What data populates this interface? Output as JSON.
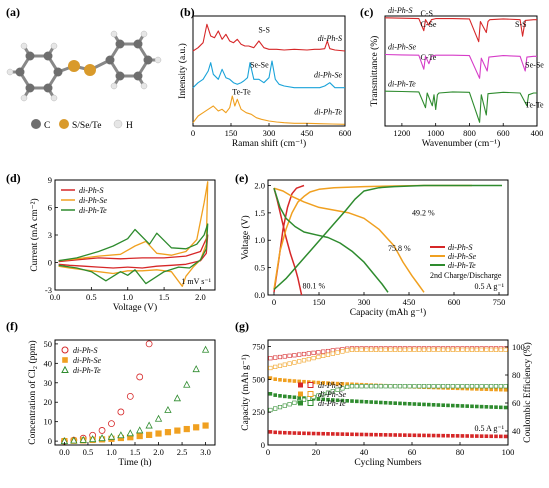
{
  "chart_data": [
    {
      "panel": "(a)",
      "type": "molecule",
      "legend": [
        "C",
        "S/Se/Te",
        "H"
      ],
      "colors": {
        "C": "#6e6e6e",
        "X": "#d99a2b",
        "H": "#e6e6e6"
      }
    },
    {
      "panel": "(b)",
      "type": "line",
      "xlabel": "Raman shift (cm⁻¹)",
      "ylabel": "Intensity (a.u.)",
      "xlim": [
        0,
        600
      ],
      "xticks": [
        "0",
        "150",
        "300",
        "450",
        "600"
      ],
      "series": [
        {
          "name": "di-Ph-S",
          "color": "#d62728",
          "offset": 2.2,
          "x": [
            0,
            20,
            40,
            55,
            70,
            85,
            100,
            115,
            130,
            145,
            160,
            175,
            190,
            205,
            220,
            240,
            260,
            280,
            300,
            330,
            360,
            400,
            450,
            480,
            500,
            520,
            530,
            540,
            560,
            600
          ],
          "values": [
            0.05,
            0.15,
            0.3,
            0.85,
            0.5,
            0.45,
            0.65,
            0.4,
            0.55,
            0.35,
            0.3,
            0.4,
            0.25,
            0.2,
            0.2,
            0.15,
            0.35,
            0.15,
            0.1,
            0.1,
            0.08,
            0.1,
            0.08,
            0.1,
            0.1,
            0.12,
            0.35,
            0.12,
            0.08,
            0.05
          ]
        },
        {
          "name": "di-Ph-Se",
          "color": "#1aa3d9",
          "offset": 1.1,
          "x": [
            0,
            20,
            40,
            60,
            70,
            80,
            100,
            115,
            130,
            145,
            160,
            175,
            190,
            200,
            215,
            225,
            240,
            260,
            280,
            300,
            312,
            325,
            340,
            360,
            400,
            450,
            500,
            520,
            540,
            560,
            600
          ],
          "values": [
            0.05,
            0.2,
            0.3,
            0.55,
            0.8,
            0.45,
            0.3,
            0.6,
            0.35,
            0.3,
            0.2,
            0.15,
            0.2,
            0.25,
            0.35,
            0.8,
            0.3,
            0.3,
            0.2,
            0.35,
            0.85,
            0.3,
            0.15,
            0.1,
            0.05,
            0.05,
            0.05,
            0.1,
            0.2,
            0.05,
            0.05
          ]
        },
        {
          "name": "di-Ph-Te",
          "color": "#f0a020",
          "offset": 0.0,
          "x": [
            0,
            20,
            40,
            60,
            80,
            100,
            115,
            130,
            145,
            155,
            165,
            175,
            190,
            210,
            230,
            250,
            270,
            300,
            330,
            360,
            400,
            450,
            500,
            550,
            600
          ],
          "values": [
            0.1,
            0.3,
            0.4,
            0.5,
            0.6,
            0.45,
            0.5,
            0.4,
            0.55,
            0.9,
            0.6,
            0.8,
            0.5,
            0.4,
            0.35,
            0.25,
            0.2,
            0.15,
            0.12,
            0.1,
            0.08,
            0.08,
            0.07,
            0.06,
            0.05
          ]
        }
      ],
      "annotations": [
        "S-S",
        "Se-Se",
        "Te-Te"
      ]
    },
    {
      "panel": "(c)",
      "type": "line",
      "xlabel": "Wavenumber (cm⁻¹)",
      "ylabel": "Transmittance (%)",
      "xlim": [
        1300,
        400
      ],
      "xticks": [
        "1200",
        "1000",
        "800",
        "600",
        "400"
      ],
      "series": [
        {
          "name": "di-Ph-S",
          "color": "#d62728",
          "offset": 2.0,
          "x": [
            1300,
            1200,
            1100,
            1070,
            1060,
            1040,
            1025,
            1000,
            900,
            800,
            745,
            735,
            700,
            690,
            680,
            600,
            500,
            485,
            470,
            420,
            400
          ],
          "values": [
            0.95,
            0.94,
            0.93,
            0.6,
            0.9,
            0.75,
            0.9,
            0.93,
            0.93,
            0.92,
            0.3,
            0.85,
            0.55,
            0.85,
            0.9,
            0.92,
            0.9,
            0.45,
            0.88,
            0.9,
            0.9
          ]
        },
        {
          "name": "di-Ph-Se",
          "color": "#d63cc8",
          "offset": 1.0,
          "x": [
            1300,
            1200,
            1100,
            1070,
            1060,
            1040,
            1025,
            1000,
            900,
            800,
            740,
            730,
            695,
            685,
            600,
            500,
            470,
            460,
            420,
            400
          ],
          "values": [
            0.95,
            0.94,
            0.93,
            0.55,
            0.9,
            0.7,
            0.9,
            0.93,
            0.93,
            0.92,
            0.3,
            0.85,
            0.5,
            0.88,
            0.92,
            0.9,
            0.5,
            0.88,
            0.9,
            0.9
          ]
        },
        {
          "name": "di-Ph-Te",
          "color": "#2e8b2e",
          "offset": 0.0,
          "x": [
            1300,
            1200,
            1100,
            1060,
            1050,
            1020,
            1010,
            1000,
            990,
            980,
            900,
            800,
            740,
            730,
            700,
            690,
            600,
            500,
            460,
            450,
            420,
            400
          ],
          "values": [
            0.95,
            0.94,
            0.93,
            0.5,
            0.9,
            0.55,
            0.85,
            0.45,
            0.85,
            0.9,
            0.93,
            0.92,
            0.1,
            0.85,
            0.3,
            0.88,
            0.92,
            0.9,
            0.55,
            0.85,
            0.9,
            0.9
          ]
        }
      ],
      "annotations": [
        "C-S",
        "C-Se",
        "C-Te",
        "S-S",
        "Se-Se",
        "Te-Te"
      ]
    },
    {
      "panel": "(d)",
      "type": "line",
      "xlabel": "Voltage (V)",
      "ylabel": "Current (mA cm⁻²)",
      "xlim": [
        0,
        2.2
      ],
      "ylim": [
        -3,
        9
      ],
      "xticks": [
        "0.0",
        "0.5",
        "1.0",
        "1.5",
        "2.0"
      ],
      "yticks": [
        "-3",
        "0",
        "3",
        "6",
        "9"
      ],
      "annotation": "1 mV s⁻¹",
      "series": [
        {
          "name": "di-Ph-S",
          "color": "#d62728",
          "x": [
            0.05,
            0.3,
            0.6,
            0.9,
            1.2,
            1.5,
            1.8,
            2.0,
            2.08,
            2.1,
            2.08,
            2.0,
            1.8,
            1.6,
            1.4,
            1.2,
            1.0,
            0.8,
            0.6,
            0.4,
            0.2,
            0.05
          ],
          "values": [
            0.1,
            0.3,
            0.5,
            0.4,
            0.5,
            0.5,
            0.7,
            1.2,
            2.6,
            3.0,
            1.0,
            0.2,
            -0.2,
            -0.3,
            -0.4,
            -0.6,
            -0.5,
            -0.6,
            -0.5,
            -0.4,
            -0.3,
            -0.2
          ]
        },
        {
          "name": "di-Ph-Se",
          "color": "#f0a020",
          "x": [
            0.05,
            0.3,
            0.6,
            0.9,
            1.1,
            1.25,
            1.4,
            1.6,
            1.8,
            1.95,
            2.05,
            2.1,
            2.08,
            2.0,
            1.9,
            1.8,
            1.75,
            1.6,
            1.4,
            1.2,
            1.0,
            0.8,
            0.6,
            0.4,
            0.2,
            0.05
          ],
          "values": [
            0.2,
            0.4,
            0.7,
            0.9,
            1.8,
            2.3,
            1.0,
            0.8,
            1.2,
            2.5,
            6.5,
            8.8,
            2.0,
            0.3,
            -0.5,
            -1.5,
            -2.6,
            -1.0,
            -0.8,
            -0.9,
            -0.9,
            -1.2,
            -1.0,
            -0.8,
            -0.6,
            -0.4
          ]
        },
        {
          "name": "di-Ph-Te",
          "color": "#2e8b2e",
          "x": [
            0.05,
            0.3,
            0.6,
            0.8,
            1.0,
            1.1,
            1.3,
            1.4,
            1.6,
            1.8,
            1.95,
            2.05,
            2.1,
            2.08,
            2.0,
            1.85,
            1.7,
            1.5,
            1.25,
            1.1,
            1.0,
            0.9,
            0.7,
            0.5,
            0.3,
            0.05
          ],
          "values": [
            0.2,
            0.5,
            1.2,
            1.8,
            2.6,
            3.6,
            2.0,
            3.2,
            1.6,
            1.5,
            2.0,
            3.0,
            4.2,
            1.5,
            0.3,
            -0.6,
            -0.5,
            -1.0,
            -2.3,
            -0.8,
            -1.4,
            -1.0,
            -2.0,
            -1.0,
            -0.6,
            -0.3
          ]
        }
      ]
    },
    {
      "panel": "(e)",
      "type": "line",
      "xlabel": "Capacity (mAh g⁻¹)",
      "ylabel": "Voltage (V)",
      "xlim": [
        -20,
        780
      ],
      "ylim": [
        0,
        2.1
      ],
      "xticks": [
        "0",
        "150",
        "300",
        "450",
        "600",
        "750"
      ],
      "yticks": [
        "0.0",
        "0.5",
        "1.0",
        "1.5",
        "2.0"
      ],
      "legend_note": "2nd Charge/Discharge",
      "current": "0.5 A g⁻¹",
      "efficiencies": [
        "49.2 %",
        "75.8 %",
        "80.1 %"
      ],
      "series": [
        {
          "name": "di-Ph-S",
          "color": "#d62728",
          "discharge": {
            "x": [
              0,
              10,
              25,
              40,
              55,
              70,
              80,
              88,
              92
            ],
            "values": [
              1.95,
              1.75,
              1.4,
              1.05,
              0.75,
              0.5,
              0.3,
              0.1,
              0.0
            ]
          },
          "charge": {
            "x": [
              0,
              15,
              30,
              45,
              60,
              75,
              90,
              100
            ],
            "values": [
              0.05,
              0.6,
              1.2,
              1.6,
              1.85,
              1.95,
              1.98,
              2.0
            ]
          }
        },
        {
          "name": "di-Ph-Se",
          "color": "#f0a020",
          "discharge": {
            "x": [
              0,
              30,
              60,
              100,
              150,
              200,
              250,
              300,
              350,
              400,
              430,
              460,
              480,
              500
            ],
            "values": [
              1.95,
              1.9,
              1.8,
              1.7,
              1.6,
              1.55,
              1.5,
              1.4,
              1.2,
              0.9,
              0.6,
              0.35,
              0.2,
              0.05
            ]
          },
          "charge": {
            "x": [
              0,
              20,
              40,
              60,
              80,
              100,
              120,
              150,
              200,
              300,
              400,
              500,
              600,
              650,
              660
            ],
            "values": [
              0.1,
              0.8,
              1.2,
              1.5,
              1.7,
              1.8,
              1.88,
              1.93,
              1.96,
              1.98,
              1.99,
              2.0,
              2.0,
              2.0,
              2.0
            ]
          }
        },
        {
          "name": "di-Ph-Te",
          "color": "#2e8b2e",
          "discharge": {
            "x": [
              0,
              20,
              40,
              70,
              100,
              140,
              180,
              220,
              260,
              300,
              330,
              360,
              380
            ],
            "values": [
              1.95,
              1.6,
              1.4,
              1.25,
              1.15,
              1.1,
              1.05,
              0.95,
              0.8,
              0.6,
              0.4,
              0.2,
              0.05
            ]
          },
          "charge": {
            "x": [
              0,
              40,
              80,
              120,
              160,
              200,
              240,
              270,
              300,
              350,
              400,
              500,
              600,
              700,
              760
            ],
            "values": [
              0.1,
              0.3,
              0.55,
              0.8,
              1.05,
              1.3,
              1.55,
              1.75,
              1.9,
              1.96,
              1.98,
              2.0,
              2.0,
              2.0,
              2.0
            ]
          }
        }
      ]
    },
    {
      "panel": "(f)",
      "type": "scatter",
      "xlabel": "Time (h)",
      "ylabel": "Concentration of Cl₂ (ppm)",
      "xlim": [
        -0.2,
        3.2
      ],
      "ylim": [
        -2,
        52
      ],
      "xticks": [
        "0.0",
        "0.5",
        "1.0",
        "1.5",
        "2.0",
        "2.5",
        "3.0"
      ],
      "yticks": [
        "0",
        "10",
        "20",
        "30",
        "40",
        "50"
      ],
      "series": [
        {
          "name": "di-Ph-S",
          "color": "#d62728",
          "marker": "half-circle",
          "x": [
            0,
            0.2,
            0.4,
            0.6,
            0.8,
            1.0,
            1.2,
            1.4,
            1.6,
            1.8
          ],
          "values": [
            0,
            0.5,
            1.5,
            3,
            5.5,
            9,
            15,
            23,
            33,
            50
          ]
        },
        {
          "name": "di-Ph-Se",
          "color": "#f0a020",
          "marker": "half-square",
          "x": [
            0,
            0.2,
            0.4,
            0.6,
            0.8,
            1.0,
            1.2,
            1.4,
            1.6,
            1.8,
            2.0,
            2.2,
            2.4,
            2.6,
            2.8,
            3.0
          ],
          "values": [
            0,
            0.2,
            0.4,
            0.6,
            0.9,
            1.2,
            1.6,
            2,
            2.6,
            3.2,
            3.9,
            4.6,
            5.4,
            6.2,
            7.1,
            8
          ]
        },
        {
          "name": "di-Ph-Te",
          "color": "#2e8b2e",
          "marker": "half-triangle",
          "x": [
            0,
            0.2,
            0.4,
            0.6,
            0.8,
            1.0,
            1.2,
            1.4,
            1.6,
            1.8,
            2.0,
            2.2,
            2.4,
            2.6,
            2.8,
            3.0
          ],
          "values": [
            0,
            0.3,
            0.6,
            1,
            1.5,
            2.2,
            3,
            4,
            5.5,
            8,
            11.5,
            16,
            22,
            29,
            37,
            47
          ]
        }
      ]
    },
    {
      "panel": "(g)",
      "type": "scatter",
      "xlabel": "Cycling Numbers",
      "ylabel": "Capacity (mAh g⁻¹)",
      "y2label": "Coulombic Efficiency (%)",
      "xlim": [
        0,
        100
      ],
      "ylim": [
        0,
        800
      ],
      "y2lim": [
        30,
        105
      ],
      "xticks": [
        "0",
        "20",
        "40",
        "60",
        "80",
        "100"
      ],
      "yticks": [
        "0",
        "250",
        "500",
        "750"
      ],
      "y2ticks": [
        "40",
        "60",
        "80",
        "100"
      ],
      "current": "0.5 A g⁻¹",
      "series": [
        {
          "name": "di-Ph-S",
          "color": "#d62728",
          "capacity_start": 100,
          "capacity_end": 65,
          "ce_start": 92,
          "ce_end": 99
        },
        {
          "name": "di-Ph-Se",
          "color": "#f0a020",
          "capacity_start": 510,
          "capacity_end": 420,
          "ce_start": 85,
          "ce_end": 98
        },
        {
          "name": "di-Ph-Te",
          "color": "#2e8b2e",
          "capacity_start": 390,
          "capacity_end": 285,
          "ce_start": 55,
          "ce_end": 72
        }
      ]
    }
  ]
}
